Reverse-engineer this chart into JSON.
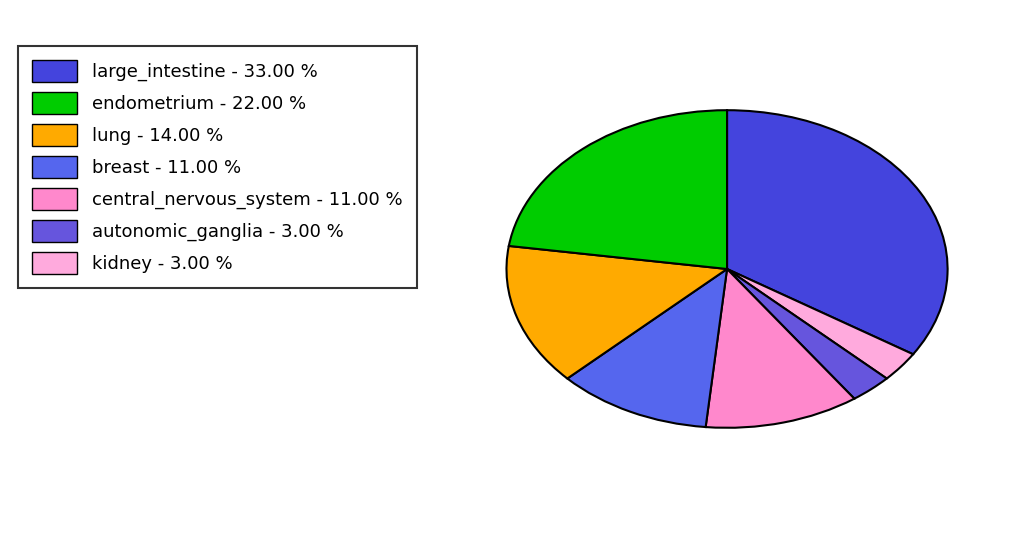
{
  "labels": [
    "large_intestine",
    "endometrium",
    "lung",
    "breast",
    "central_nervous_system",
    "autonomic_ganglia",
    "kidney"
  ],
  "sizes": [
    33,
    22,
    14,
    11,
    11,
    3,
    3
  ],
  "colors_by_label": {
    "large_intestine": "#4444dd",
    "endometrium": "#00cc00",
    "lung": "#ffaa00",
    "breast": "#5566ee",
    "central_nervous_system": "#ff88cc",
    "autonomic_ganglia": "#6655dd",
    "kidney": "#ffaadd"
  },
  "legend_labels": [
    "large_intestine - 33.00 %",
    "endometrium - 22.00 %",
    "lung - 14.00 %",
    "breast - 11.00 %",
    "central_nervous_system - 11.00 %",
    "autonomic_ganglia - 3.00 %",
    "kidney - 3.00 %"
  ],
  "legend_colors": [
    "#4444dd",
    "#00cc00",
    "#ffaa00",
    "#5566ee",
    "#ff88cc",
    "#6655dd",
    "#ffaadd"
  ],
  "background_color": "#ffffff",
  "edgecolor": "#000000",
  "linewidth": 1.5,
  "legend_fontsize": 13,
  "pie_slice_order": [
    "large_intestine",
    "kidney",
    "autonomic_ganglia",
    "central_nervous_system",
    "breast",
    "lung",
    "endometrium"
  ],
  "ellipse_xscale": 1.0,
  "ellipse_yscale": 0.72
}
